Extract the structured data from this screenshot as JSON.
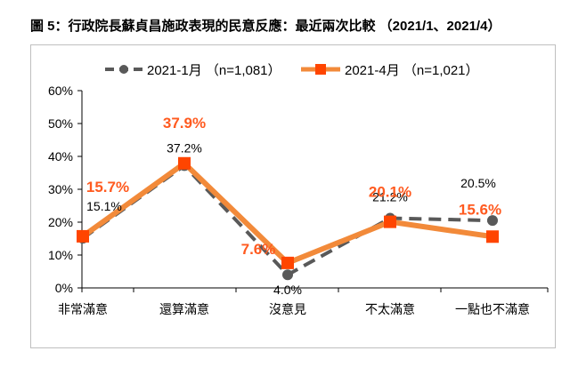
{
  "title": "圖 5：行政院長蘇貞昌施政表現的民意反應：最近兩次比較 （2021/1、2021/4）",
  "colors": {
    "jan_series": "#595959",
    "apr_series": "#f28a3a",
    "apr_marker": "#ff4500",
    "apr_label": "#ff5a1f",
    "grid": "#d9d9d9"
  },
  "chart_data": {
    "type": "line",
    "categories": [
      "非常滿意",
      "還算滿意",
      "沒意見",
      "不太滿意",
      "一點也不滿意"
    ],
    "y_ticks": [
      "0%",
      "10%",
      "20%",
      "30%",
      "40%",
      "50%",
      "60%"
    ],
    "ylim": [
      0,
      60
    ],
    "grid": false,
    "legend_position": "top",
    "series": [
      {
        "name": "2021-1月 （n=1,081）",
        "values": [
          15.1,
          37.2,
          4.0,
          21.2,
          20.5
        ],
        "labels": [
          "15.1%",
          "37.2%",
          "4.0%",
          "21.2%",
          "20.5%"
        ],
        "style": "dashed",
        "marker": "circle"
      },
      {
        "name": "2021-4月 （n=1,021）",
        "values": [
          15.7,
          37.9,
          7.6,
          20.1,
          15.6
        ],
        "labels": [
          "15.7%",
          "37.9%",
          "7.6%",
          "20.1%",
          "15.6%"
        ],
        "style": "solid",
        "marker": "square"
      }
    ]
  }
}
